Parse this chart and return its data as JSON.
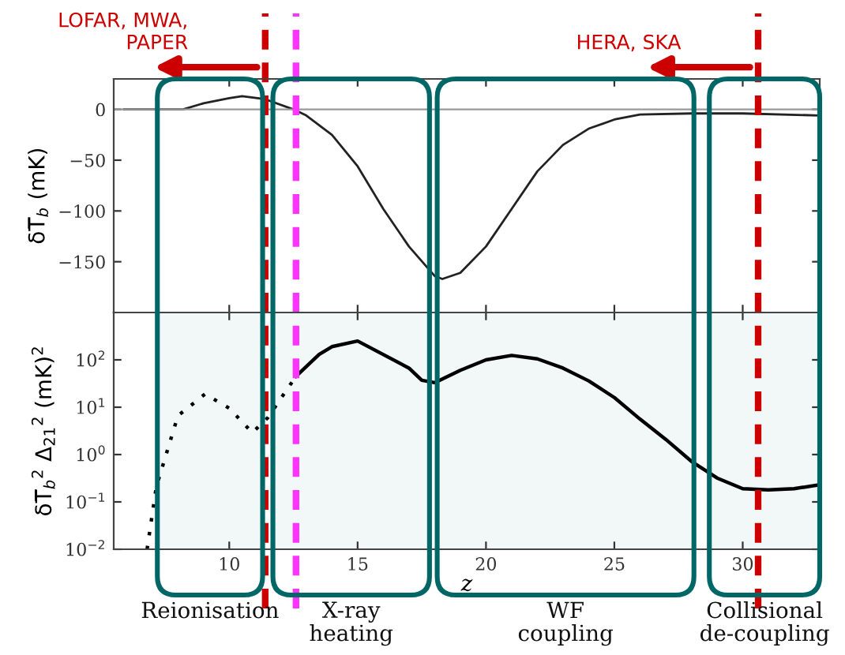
{
  "chart_data": [
    {
      "type": "line",
      "ylabel": "δT̅$_{b}$ (mK)",
      "tick_labels": "y",
      "grid": false,
      "xlim": [
        5.5,
        33
      ],
      "ylim": [
        -200,
        30
      ],
      "xticks": [
        {
          "value": 10,
          "label": null
        },
        {
          "value": 15,
          "label": null
        },
        {
          "value": 20,
          "label": null
        },
        {
          "value": 25,
          "label": null
        },
        {
          "value": 30,
          "label": null
        }
      ],
      "yticks": [
        {
          "value": 0,
          "label": "0"
        },
        {
          "value": -50,
          "label": "−50"
        },
        {
          "value": -100,
          "label": "−100"
        },
        {
          "value": -150,
          "label": "−150"
        }
      ],
      "series": [
        {
          "color": "#222222",
          "line_style": "solid",
          "x": [
            5.9,
            8.2,
            9.0,
            10.0,
            10.5,
            11.4,
            12.5,
            13,
            14,
            15,
            16,
            17,
            18,
            18.3,
            19,
            20,
            21,
            22,
            23,
            24,
            25,
            26,
            28,
            30,
            33
          ],
          "values": [
            0,
            0,
            6,
            11,
            13,
            10,
            0,
            -6,
            -25,
            -56,
            -98,
            -135,
            -164,
            -167,
            -161,
            -135,
            -98,
            -61,
            -35,
            -19,
            -10,
            -5,
            -4,
            -4,
            -6
          ]
        }
      ],
      "ref_lines": [
        {
          "axis": "y",
          "value": 0,
          "color": "#999999",
          "line_style": "solid"
        },
        {
          "axis": "x",
          "value": 11.4,
          "color": "#cc0000",
          "line_style": "dashed",
          "label": "LOFAR, MWA,\nPAPER"
        },
        {
          "axis": "x",
          "value": 12.6,
          "color": "#ff33ff",
          "line_style": "dashed"
        },
        {
          "axis": "x",
          "value": 30.6,
          "color": "#cc0000",
          "line_style": "dashed",
          "label": "HERA, SKA"
        }
      ]
    },
    {
      "type": "line",
      "xlabel": "z",
      "ylabel": "δT̅$_{b}$$^{2}$ Δ$_{21}$$^{2}$ (mK)$^{2}$",
      "log": "y",
      "grid": false,
      "xlim": [
        5.5,
        33
      ],
      "ylim": [
        0.01,
        1000
      ],
      "xticks": [
        10,
        15,
        20,
        25,
        30
      ],
      "yticks": [
        {
          "value": 0.01,
          "label": "10$^{−2}$"
        },
        {
          "value": 0.1,
          "label": "10$^{−1}$"
        },
        {
          "value": 1,
          "label": "10$^{0}$"
        },
        {
          "value": 10,
          "label": "10$^{1}$"
        },
        {
          "value": 100,
          "label": "10$^{2}$"
        }
      ],
      "series": [
        {
          "color": "#000000",
          "line_style": "dotted",
          "x": [
            6.8,
            7.16,
            8,
            9.06,
            10,
            10.9,
            11.5,
            12.6
          ],
          "values": [
            0.01,
            0.21,
            6.6,
            19,
            9.5,
            2.9,
            6,
            45
          ]
        },
        {
          "color": "#000000",
          "line_style": "solid",
          "x": [
            12.6,
            13.5,
            14,
            15,
            17,
            17.5,
            18,
            19,
            20,
            21,
            22,
            23,
            24,
            25,
            26,
            27,
            28,
            29,
            30,
            31,
            32,
            33
          ],
          "values": [
            45,
            130,
            190,
            250,
            67,
            37,
            33,
            60,
            100,
            124,
            105,
            67,
            36,
            16,
            5.6,
            2.1,
            0.72,
            0.32,
            0.19,
            0.18,
            0.19,
            0.23
          ]
        }
      ],
      "ref_lines": [
        {
          "axis": "x",
          "value": 11.4,
          "color": "#cc0000",
          "line_style": "dashed"
        },
        {
          "axis": "x",
          "value": 12.6,
          "color": "#ff33ff",
          "line_style": "dashed"
        },
        {
          "axis": "x",
          "value": 30.6,
          "color": "#cc0000",
          "line_style": "dashed"
        }
      ],
      "bands": [
        {
          "axis": "x",
          "from": 7.2,
          "to": 11.3,
          "label": "Reionisation",
          "color": "#006666"
        },
        {
          "axis": "x",
          "from": 11.7,
          "to": 17.8,
          "label": "X-ray\nheating",
          "color": "#006666"
        },
        {
          "axis": "x",
          "from": 18.1,
          "to": 28.1,
          "label": "WF\ncoupling",
          "color": "#006666"
        },
        {
          "axis": "x",
          "from": 28.7,
          "to": 33,
          "label": "Collisional\nde-coupling",
          "color": "#006666"
        }
      ]
    }
  ]
}
